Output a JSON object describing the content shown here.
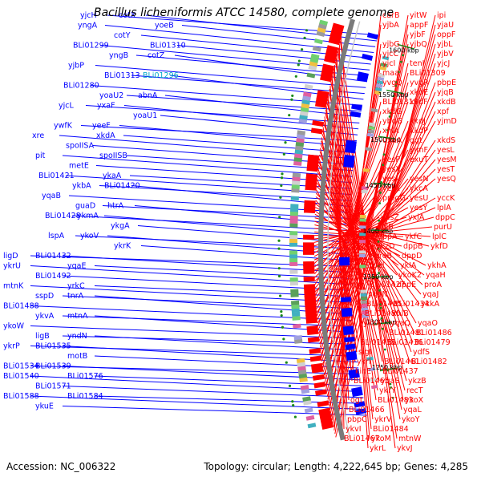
{
  "title": "Bacillus licheniformis ATCC 14580, complete genome",
  "footer": {
    "accession": "Accession: NC_006322",
    "summary": "Topology: circular; Length: 4,222,645 bp; Genes: 4,285"
  },
  "colors": {
    "forward": "#ff0000",
    "reverse": "#0000ff",
    "highlight": "#00a8c8",
    "ring": "#7a7a7a",
    "tick": "#1a8a1a"
  },
  "ticks": [
    "1250 kbp",
    "1300 kbp",
    "1350 kbp",
    "1400 kbp",
    "1450 kbp",
    "1500 kbp",
    "1550 kbp",
    "1600 kbp"
  ],
  "left_labels": [
    {
      "name": "yjcH"
    },
    {
      "name": "cotX"
    },
    {
      "name": "yoeB"
    },
    {
      "name": "yngA"
    },
    {
      "name": "cotY"
    },
    {
      "name": "BLi01310"
    },
    {
      "name": "BLi01299"
    },
    {
      "name": "yngB"
    },
    {
      "name": "cotZ"
    },
    {
      "name": "yjbP"
    },
    {
      "name": "BLi01313"
    },
    {
      "name": "BLi01296",
      "highlight": true
    },
    {
      "name": "BLi01280"
    },
    {
      "name": "yoaU2"
    },
    {
      "name": "abnA"
    },
    {
      "name": "yjcL"
    },
    {
      "name": "yxaF"
    },
    {
      "name": "yoaU1"
    },
    {
      "name": "ywfK"
    },
    {
      "name": "yeeF"
    },
    {
      "name": "xkdA"
    },
    {
      "name": "xre"
    },
    {
      "name": "spoIISA"
    },
    {
      "name": "spoIISB"
    },
    {
      "name": "pit"
    },
    {
      "name": "metE"
    },
    {
      "name": "ykaA"
    },
    {
      "name": "BLi01421"
    },
    {
      "name": "ykbA"
    },
    {
      "name": "BLi01420"
    },
    {
      "name": "yqaB"
    },
    {
      "name": "guaD"
    },
    {
      "name": "htrA"
    },
    {
      "name": "BLi01428"
    },
    {
      "name": "ykmA"
    },
    {
      "name": "ykgA"
    },
    {
      "name": "lspA"
    },
    {
      "name": "ykoV"
    },
    {
      "name": "ykrK"
    },
    {
      "name": "ligD"
    },
    {
      "name": "BLi01432"
    },
    {
      "name": "yqaE"
    },
    {
      "name": "ykrU"
    },
    {
      "name": "BLi01492"
    },
    {
      "name": "yrkC"
    },
    {
      "name": "mtnK"
    },
    {
      "name": "sspD"
    },
    {
      "name": "tnrA"
    },
    {
      "name": "BLi01488"
    },
    {
      "name": "ykvA"
    },
    {
      "name": "mtnA"
    },
    {
      "name": "ykoW"
    },
    {
      "name": "ligB"
    },
    {
      "name": "yndN"
    },
    {
      "name": "ykrP"
    },
    {
      "name": "BLi01535"
    },
    {
      "name": "motB"
    },
    {
      "name": "BLi01534"
    },
    {
      "name": "BLi01539"
    },
    {
      "name": "BLi01576"
    },
    {
      "name": "BLi01540"
    },
    {
      "name": "BLi01571"
    },
    {
      "name": "BLi01584"
    },
    {
      "name": "BLi01588"
    },
    {
      "name": "ykuE"
    }
  ],
  "right_labels": [
    {
      "name": "ipi"
    },
    {
      "name": "yitW"
    },
    {
      "name": "carB"
    },
    {
      "name": "yjaU"
    },
    {
      "name": "appF"
    },
    {
      "name": "yjbA"
    },
    {
      "name": "oppF"
    },
    {
      "name": "yjbF"
    },
    {
      "name": "yjbG"
    },
    {
      "name": "yjbL"
    },
    {
      "name": "yjbQ"
    },
    {
      "name": "yjcC"
    },
    {
      "name": "yjbV"
    },
    {
      "name": "tenI"
    },
    {
      "name": "yjcI"
    },
    {
      "name": "yjcJ"
    },
    {
      "name": "BLi01309"
    },
    {
      "name": "maa"
    },
    {
      "name": "pbpE"
    },
    {
      "name": "yvgR"
    },
    {
      "name": "yvgQ"
    },
    {
      "name": "yjqB"
    },
    {
      "name": "xkdE"
    },
    {
      "name": "BLi01319"
    },
    {
      "name": "xkdB"
    },
    {
      "name": "xkdF"
    },
    {
      "name": "xkdG"
    },
    {
      "name": "xpf"
    },
    {
      "name": "xkdJ"
    },
    {
      "name": "ybqG"
    },
    {
      "name": "yjmD"
    },
    {
      "name": "xkdP"
    },
    {
      "name": "xhlA"
    },
    {
      "name": "xkdS"
    },
    {
      "name": "ggt"
    },
    {
      "name": "uxuA"
    },
    {
      "name": "yesL"
    },
    {
      "name": "yjmF"
    },
    {
      "name": "yesP"
    },
    {
      "name": "yesM"
    },
    {
      "name": "exuT"
    },
    {
      "name": "yesX"
    },
    {
      "name": "yesT"
    },
    {
      "name": "yesN"
    },
    {
      "name": "yesV"
    },
    {
      "name": "yesQ"
    },
    {
      "name": "ykcA"
    },
    {
      "name": "yetA"
    },
    {
      "name": "yccK"
    },
    {
      "name": "yesU"
    },
    {
      "name": "progG"
    },
    {
      "name": "lplA"
    },
    {
      "name": "yesY"
    },
    {
      "name": "yesZ"
    },
    {
      "name": "dppC"
    },
    {
      "name": "yxjA"
    },
    {
      "name": "lplB"
    },
    {
      "name": "purU"
    },
    {
      "name": "ykfC"
    },
    {
      "name": "dppA"
    },
    {
      "name": "lplC"
    },
    {
      "name": "dppB"
    },
    {
      "name": "ykzD"
    },
    {
      "name": "ykfD"
    },
    {
      "name": "dppD"
    },
    {
      "name": "proB"
    },
    {
      "name": "ykhA"
    },
    {
      "name": "ykIA"
    },
    {
      "name": "pel"
    },
    {
      "name": "yqaH"
    },
    {
      "name": "ykoK2"
    },
    {
      "name": "BLi01427"
    },
    {
      "name": "proA"
    },
    {
      "name": "dppE"
    },
    {
      "name": "yqaN"
    },
    {
      "name": "yqaJ"
    },
    {
      "name": "BLi01434"
    },
    {
      "name": "BLi01405"
    },
    {
      "name": "ykkA"
    },
    {
      "name": "xhlB"
    },
    {
      "name": "BLi01480"
    },
    {
      "name": "yqaO"
    },
    {
      "name": "yqaQ"
    },
    {
      "name": "ykzA"
    },
    {
      "name": "BLi01486"
    },
    {
      "name": "BLi01481"
    },
    {
      "name": "BLi01435"
    },
    {
      "name": "BLi01479"
    },
    {
      "name": "BLi01436"
    },
    {
      "name": "sigI"
    },
    {
      "name": "ydfS"
    },
    {
      "name": "BLi01461"
    },
    {
      "name": "ykrl"
    },
    {
      "name": "BLi01482"
    },
    {
      "name": "BLi01437"
    },
    {
      "name": "kinE"
    },
    {
      "name": "ykzB"
    },
    {
      "name": "yqaS"
    },
    {
      "name": "BLi01465"
    },
    {
      "name": "recT"
    },
    {
      "name": "ykrY"
    },
    {
      "name": "ogt"
    },
    {
      "name": "ykoX"
    },
    {
      "name": "BLi01483"
    },
    {
      "name": "BLi01466"
    },
    {
      "name": "yqaL"
    },
    {
      "name": "ykrV"
    },
    {
      "name": "pbpC"
    },
    {
      "name": "ykoY"
    },
    {
      "name": "BLi01484"
    },
    {
      "name": "ykvI"
    },
    {
      "name": "mtnW"
    },
    {
      "name": "ykoM"
    },
    {
      "name": "BLi01467"
    },
    {
      "name": "ykvJ"
    },
    {
      "name": "ykrL"
    }
  ]
}
